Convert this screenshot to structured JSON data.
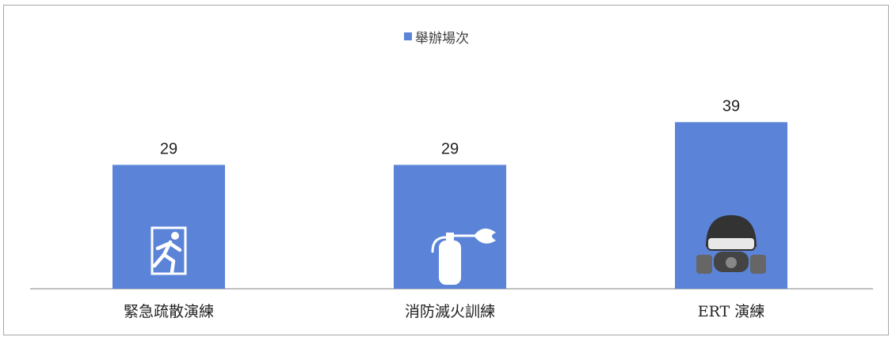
{
  "chart_data": {
    "type": "bar",
    "categories": [
      "緊急疏散演練",
      "消防滅火訓練",
      "ERT 演練"
    ],
    "series": [
      {
        "name": "舉辦場次",
        "values": [
          29,
          29,
          39
        ]
      }
    ],
    "icons": [
      "emergency-exit-icon",
      "fire-extinguisher-icon",
      "gas-mask-icon"
    ],
    "legend_position": "top",
    "bar_color": "#5b84d8",
    "grid": false
  }
}
